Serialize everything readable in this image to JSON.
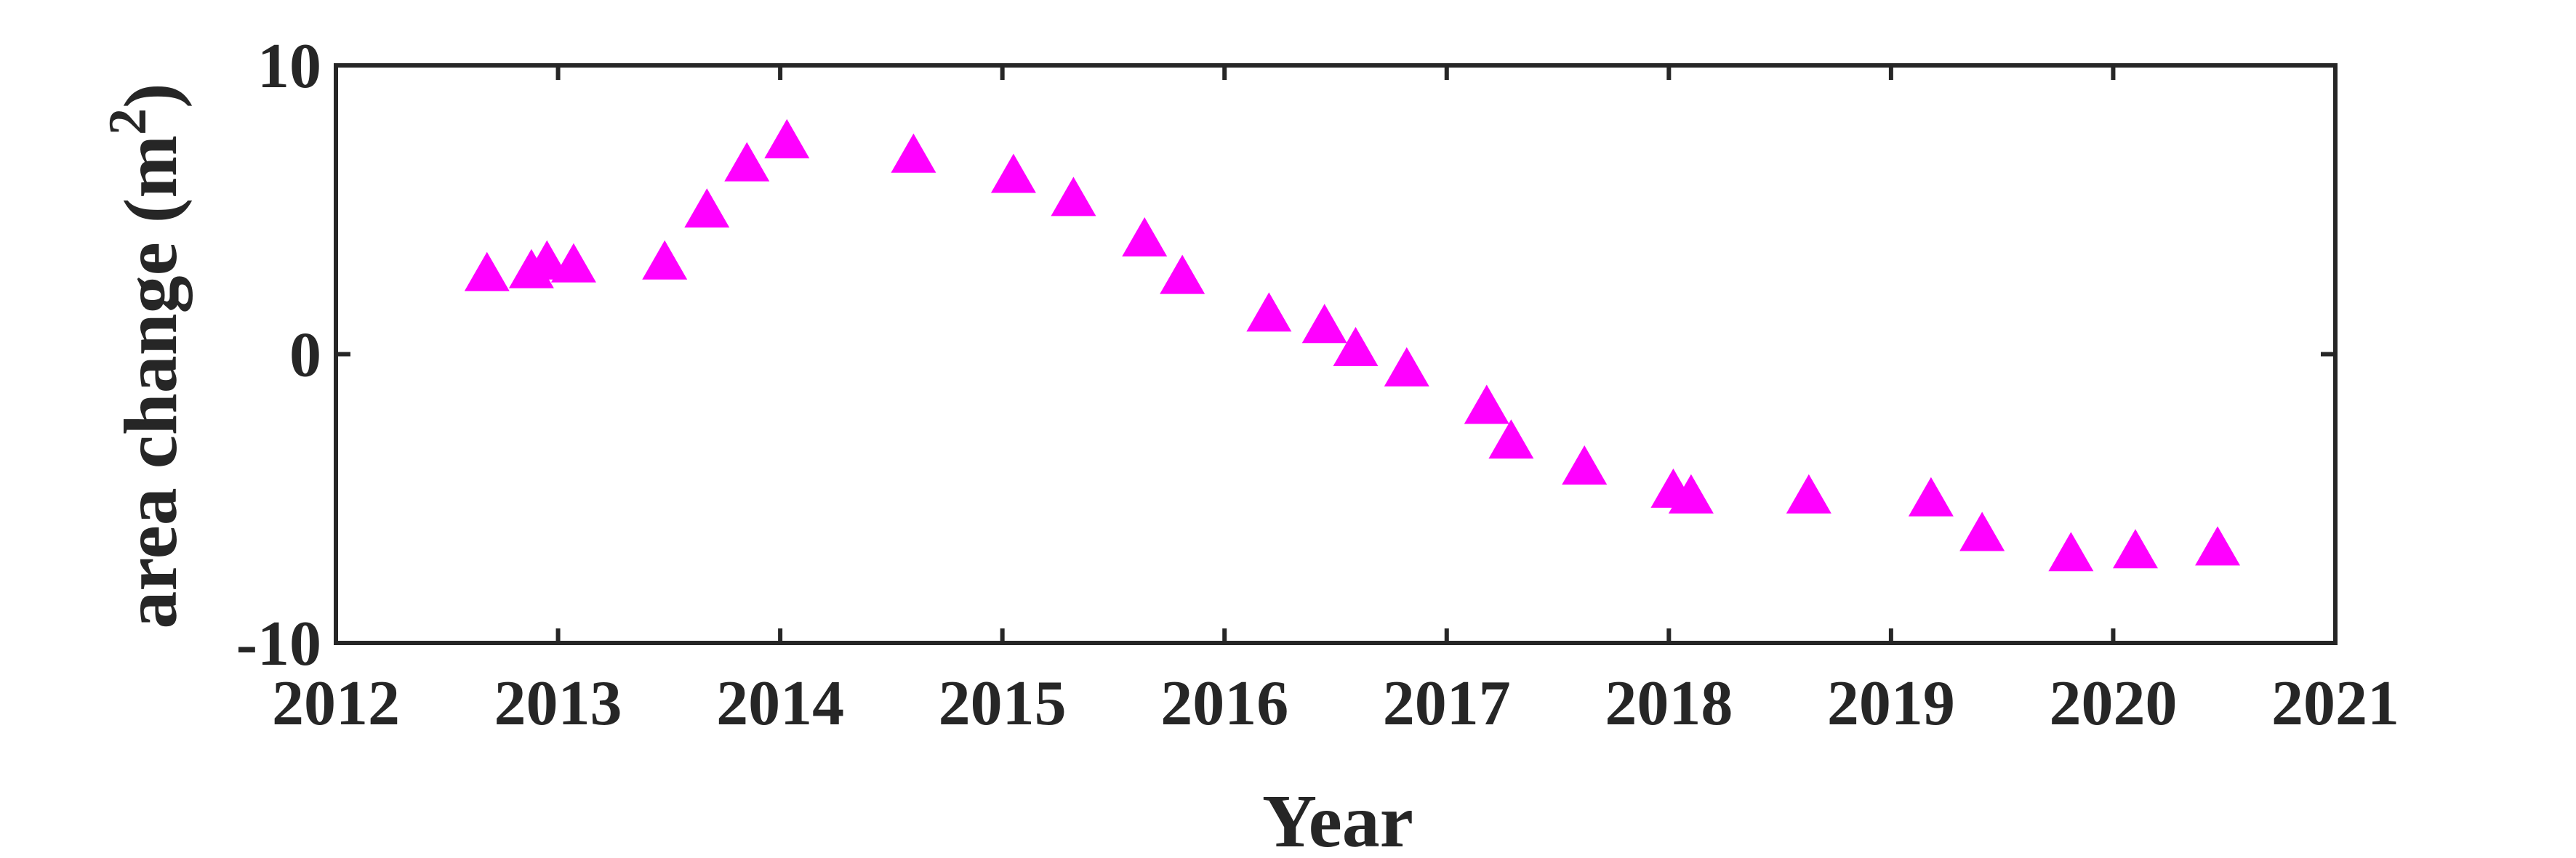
{
  "chart_data": {
    "type": "scatter",
    "xlabel": "Year",
    "ylabel": "area change (m",
    "ylabel_superscript": "2",
    "ylabel_close": ")",
    "xlim": [
      2012,
      2021
    ],
    "ylim": [
      -10,
      10
    ],
    "x_ticks": [
      2012,
      2013,
      2014,
      2015,
      2016,
      2017,
      2018,
      2019,
      2020,
      2021
    ],
    "y_ticks": [
      -10,
      0,
      10
    ],
    "grid": false,
    "marker": "triangle",
    "marker_color": "#ff00ff",
    "axis_color": "#262626",
    "series": [
      {
        "points": [
          [
            2012.68,
            2.7
          ],
          [
            2012.88,
            2.8
          ],
          [
            2012.95,
            3.1
          ],
          [
            2013.07,
            3.0
          ],
          [
            2013.48,
            3.1
          ],
          [
            2013.67,
            4.9
          ],
          [
            2013.85,
            6.5
          ],
          [
            2014.03,
            7.3
          ],
          [
            2014.6,
            6.8
          ],
          [
            2015.05,
            6.1
          ],
          [
            2015.32,
            5.3
          ],
          [
            2015.64,
            3.9
          ],
          [
            2015.81,
            2.6
          ],
          [
            2016.2,
            1.3
          ],
          [
            2016.45,
            0.9
          ],
          [
            2016.59,
            0.1
          ],
          [
            2016.82,
            -0.6
          ],
          [
            2017.18,
            -1.9
          ],
          [
            2017.29,
            -3.1
          ],
          [
            2017.62,
            -4.0
          ],
          [
            2018.02,
            -4.8
          ],
          [
            2018.1,
            -5.0
          ],
          [
            2018.63,
            -5.0
          ],
          [
            2019.18,
            -5.1
          ],
          [
            2019.41,
            -6.3
          ],
          [
            2019.81,
            -7.0
          ],
          [
            2020.1,
            -6.9
          ],
          [
            2020.47,
            -6.8
          ]
        ]
      }
    ]
  }
}
